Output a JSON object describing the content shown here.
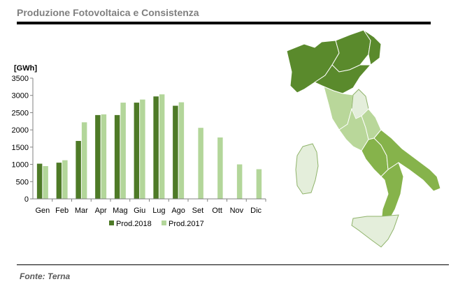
{
  "header": {
    "title": "Produzione Fotovoltaica e Consistenza"
  },
  "footer": {
    "source": "Fonte: Terna"
  },
  "chart_data": {
    "type": "bar",
    "ylabel": "[GWh]",
    "ylim": [
      0,
      3500
    ],
    "yticks": [
      0,
      500,
      1000,
      1500,
      2000,
      2500,
      3000,
      3500
    ],
    "categories": [
      "Gen",
      "Feb",
      "Mar",
      "Apr",
      "Mag",
      "Giu",
      "Lug",
      "Ago",
      "Set",
      "Ott",
      "Nov",
      "Dic"
    ],
    "series": [
      {
        "name": "Prod.2018",
        "color": "#4e7a27",
        "values": [
          1020,
          1050,
          1680,
          2430,
          2430,
          2790,
          2970,
          2700,
          null,
          null,
          null,
          null
        ]
      },
      {
        "name": "Prod.2017",
        "color": "#b3d69a",
        "values": [
          950,
          1120,
          2220,
          2450,
          2790,
          2880,
          3030,
          2800,
          2060,
          1780,
          1000,
          860
        ]
      }
    ],
    "legend": "bottom",
    "grid": false
  },
  "map": {
    "colors": {
      "dark": "#5a8a2c",
      "medium": "#86b34b",
      "light": "#b9d79a",
      "pale": "#e4eedb"
    }
  }
}
